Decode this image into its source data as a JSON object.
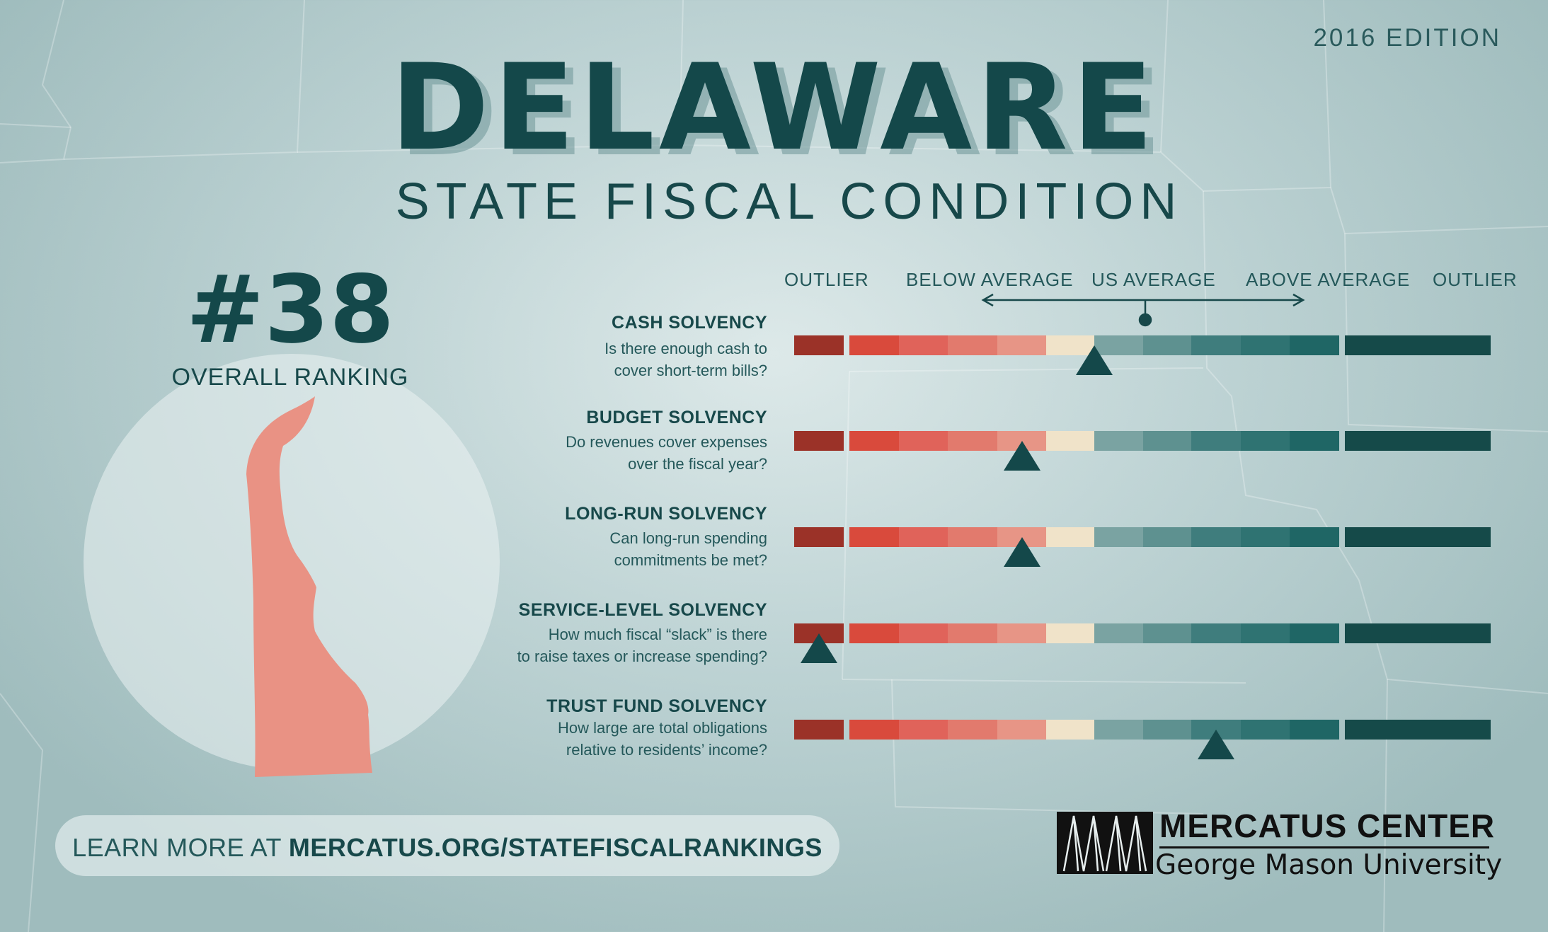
{
  "edition": "2016 EDITION",
  "title": "DELAWARE",
  "subtitle": "STATE FISCAL CONDITION",
  "ranking": {
    "number": "#38",
    "label": "OVERALL RANKING"
  },
  "scale_headers": [
    "OUTLIER",
    "BELOW AVERAGE",
    "US AVERAGE",
    "ABOVE AVERAGE",
    "OUTLIER"
  ],
  "scale_colors": [
    "#9b3228",
    "#d94a3c",
    "#e0635a",
    "#e27a6d",
    "#e79586",
    "#f0e3c9",
    "#7aa3a2",
    "#5e9190",
    "#3f7d7d",
    "#2f7372",
    "#1f6665",
    "#154a49"
  ],
  "rows": [
    {
      "title": "CASH SOLVENCY",
      "question": [
        "Is there enough cash to",
        "cover short-term bills?"
      ],
      "marker_segment": 6.0
    },
    {
      "title": "BUDGET SOLVENCY",
      "question": [
        "Do revenues cover expenses",
        "over the fiscal year?"
      ],
      "marker_segment": 4.5
    },
    {
      "title": "LONG-RUN SOLVENCY",
      "question": [
        "Can long-run spending",
        "commitments be met?"
      ],
      "marker_segment": 4.5
    },
    {
      "title": "SERVICE-LEVEL SOLVENCY",
      "question": [
        "How much fiscal “slack” is there",
        "to raise taxes or increase spending?"
      ],
      "marker_segment": 0.5
    },
    {
      "title": "TRUST FUND SOLVENCY",
      "question": [
        "How large are total obligations",
        "relative to residents’ income?"
      ],
      "marker_segment": 8.5
    }
  ],
  "state_color": "#e99284",
  "footer": {
    "prefix": "LEARN MORE AT ",
    "url": "MERCATUS.ORG/STATEFISCALRANKINGS"
  },
  "logo": {
    "line1": "MERCATUS CENTER",
    "line2": "George Mason University"
  }
}
